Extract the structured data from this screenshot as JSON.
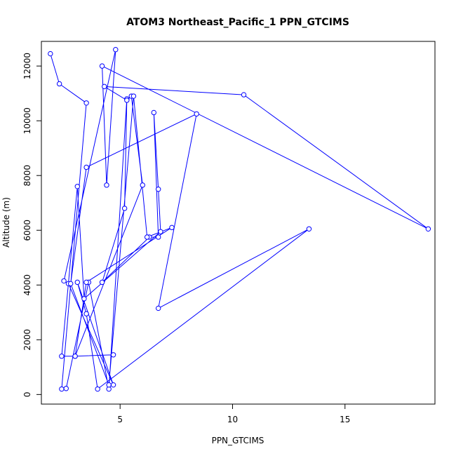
{
  "chart_data": {
    "type": "line",
    "title": "ATOM3 Northeast_Pacific_1 PPN_GTCIMS",
    "xlabel": "PPN_GTCIMS",
    "ylabel": "Altitude (m)",
    "xlim": [
      1.5,
      19.0
    ],
    "ylim": [
      -350,
      12900
    ],
    "x_ticks": [
      5,
      10,
      15
    ],
    "y_ticks": [
      0,
      2000,
      4000,
      6000,
      8000,
      10000,
      12000
    ],
    "grid": false,
    "line_color": "#0000ff",
    "marker": "open-circle",
    "series": [
      {
        "x": [
          1.9,
          2.3,
          3.5,
          2.4,
          2.6,
          3.6,
          4.5,
          5.3,
          5.2,
          4.2,
          6.3,
          6.7,
          6.5,
          6.7,
          6.8,
          3.4,
          3.1,
          2.4,
          3.0,
          6.0,
          5.5,
          5.3,
          4.3,
          10.5,
          18.7,
          4.2,
          4.4,
          4.8,
          2.5,
          2.7,
          4.7,
          3.1,
          3.5,
          4.0,
          13.4,
          6.7,
          8.4,
          3.5,
          2.8,
          4.5,
          5.6,
          6.2,
          7.3,
          3.5,
          3.0,
          4.7
        ],
        "y": [
          12450,
          11350,
          10650,
          200,
          220,
          4100,
          200,
          10800,
          6800,
          4100,
          5750,
          5750,
          10300,
          7500,
          5950,
          3500,
          7600,
          1400,
          1400,
          7650,
          10900,
          10750,
          11250,
          10950,
          6050,
          12000,
          7650,
          12600,
          4150,
          4050,
          350,
          4100,
          2950,
          200,
          6050,
          3150,
          10250,
          8300,
          4050,
          350,
          10900,
          5750,
          6100,
          4100,
          1400,
          1450
        ]
      }
    ]
  }
}
